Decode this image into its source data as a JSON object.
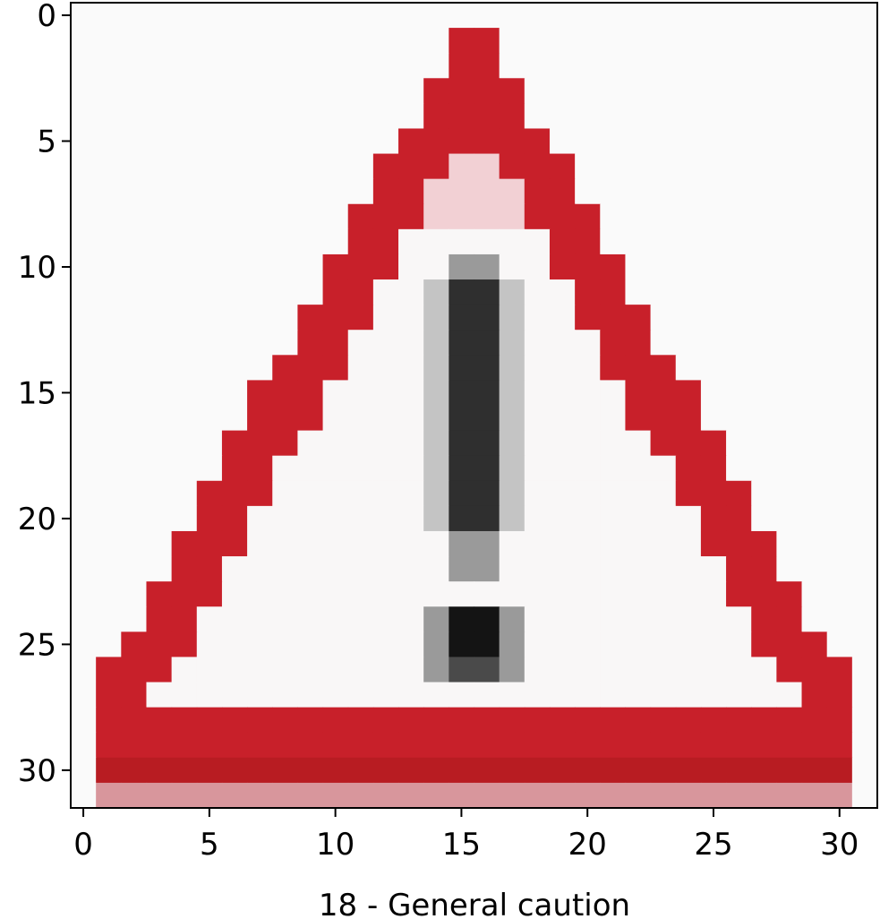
{
  "chart_data": {
    "type": "heatmap",
    "image_size": [
      32,
      32
    ],
    "xlabel": "18 - General caution",
    "ylabel": "",
    "title": "",
    "x_ticks": [
      "0",
      "5",
      "10",
      "15",
      "20",
      "25",
      "30"
    ],
    "y_ticks": [
      "0",
      "5",
      "10",
      "15",
      "20",
      "25",
      "30"
    ],
    "xlim": [
      -0.5,
      31.5
    ],
    "ylim": [
      31.5,
      -0.5
    ],
    "grid": false,
    "subject": "General caution warning sign",
    "colors": {
      "background": "#fafafa",
      "border_red": "#c8202a",
      "border_red_dark": "#b81c22",
      "inner_white": "#f9f7f7",
      "exclamation_dark": "#2f2f2f",
      "exclamation_gray": "#9a9a9a"
    }
  }
}
